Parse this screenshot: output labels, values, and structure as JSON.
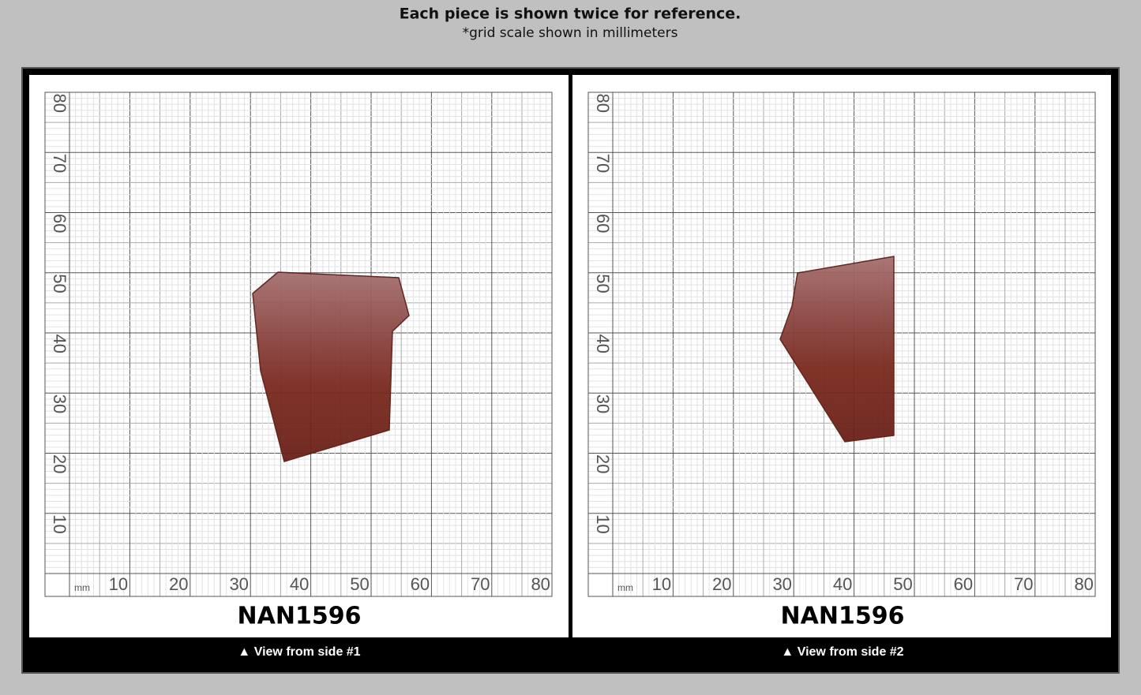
{
  "header": {
    "title": "Each piece is shown twice for reference.",
    "subtitle": "*grid scale shown in millimeters"
  },
  "panels": [
    {
      "label": "NAN1596",
      "caption": "▲ View from side #1",
      "grid": {
        "unit": "mm",
        "x_labels": [
          10,
          20,
          30,
          40,
          50,
          60,
          70,
          80
        ],
        "y_labels": [
          80,
          70,
          60,
          50,
          40,
          30,
          20,
          10
        ]
      }
    },
    {
      "label": "NAN1596",
      "caption": "▲ View from side #2",
      "grid": {
        "unit": "mm",
        "x_labels": [
          10,
          20,
          30,
          40,
          50,
          60,
          70,
          80
        ],
        "y_labels": [
          80,
          70,
          60,
          50,
          40,
          30,
          20,
          10
        ]
      }
    }
  ]
}
